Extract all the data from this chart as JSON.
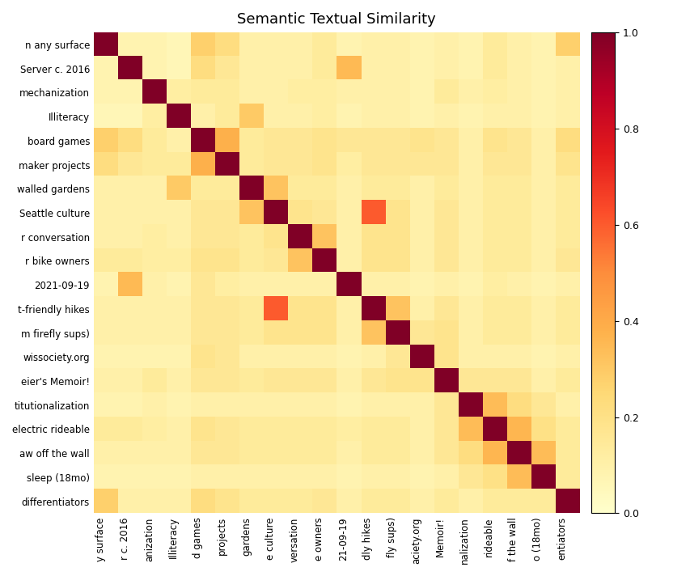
{
  "title": "Semantic Textual Similarity",
  "labels": [
    "n any surface",
    "Server c. 2016",
    "mechanization",
    "Illiteracy",
    "board games",
    "maker projects",
    "walled gardens",
    "Seattle culture",
    "r conversation",
    "r bike owners",
    "2021-09-19",
    "t-friendly hikes",
    "m firefly sups)",
    "wissociety.org",
    "eier's Memoir!",
    "titutionalization",
    "electric rideable",
    "aw off the wall",
    "sleep (18mo)",
    "differentiators"
  ],
  "x_labels": [
    "y surface",
    "r c. 2016",
    "anization",
    "Illiteracy",
    "d games",
    "projects",
    "gardens",
    "e culture",
    "versation",
    "e owners",
    "21-09-19",
    "dly hikes",
    "fly sups)",
    "aciety.org",
    "Memoir!",
    "nalization",
    "rideable",
    "f the wall",
    "o (18mo)",
    "entiators"
  ],
  "matrix": [
    [
      1.0,
      0.08,
      0.08,
      0.06,
      0.28,
      0.22,
      0.1,
      0.1,
      0.1,
      0.14,
      0.08,
      0.1,
      0.1,
      0.08,
      0.1,
      0.08,
      0.14,
      0.1,
      0.08,
      0.28
    ],
    [
      0.08,
      1.0,
      0.08,
      0.06,
      0.22,
      0.16,
      0.1,
      0.1,
      0.1,
      0.14,
      0.35,
      0.1,
      0.1,
      0.08,
      0.1,
      0.08,
      0.14,
      0.1,
      0.08,
      0.1
    ],
    [
      0.08,
      0.08,
      1.0,
      0.12,
      0.14,
      0.14,
      0.1,
      0.1,
      0.12,
      0.12,
      0.1,
      0.1,
      0.1,
      0.08,
      0.14,
      0.1,
      0.12,
      0.1,
      0.08,
      0.1
    ],
    [
      0.06,
      0.06,
      0.12,
      1.0,
      0.1,
      0.14,
      0.3,
      0.1,
      0.1,
      0.12,
      0.08,
      0.1,
      0.1,
      0.08,
      0.1,
      0.08,
      0.1,
      0.1,
      0.08,
      0.1
    ],
    [
      0.28,
      0.22,
      0.14,
      0.1,
      1.0,
      0.38,
      0.14,
      0.16,
      0.16,
      0.18,
      0.16,
      0.16,
      0.16,
      0.18,
      0.16,
      0.1,
      0.18,
      0.16,
      0.1,
      0.22
    ],
    [
      0.22,
      0.16,
      0.14,
      0.14,
      0.38,
      1.0,
      0.14,
      0.16,
      0.16,
      0.18,
      0.12,
      0.16,
      0.16,
      0.16,
      0.16,
      0.1,
      0.16,
      0.16,
      0.1,
      0.18
    ],
    [
      0.1,
      0.1,
      0.1,
      0.3,
      0.14,
      0.14,
      1.0,
      0.32,
      0.14,
      0.14,
      0.1,
      0.14,
      0.14,
      0.1,
      0.14,
      0.1,
      0.14,
      0.14,
      0.1,
      0.14
    ],
    [
      0.1,
      0.1,
      0.1,
      0.1,
      0.16,
      0.16,
      0.32,
      1.0,
      0.18,
      0.16,
      0.1,
      0.6,
      0.18,
      0.1,
      0.16,
      0.1,
      0.14,
      0.14,
      0.1,
      0.14
    ],
    [
      0.1,
      0.1,
      0.12,
      0.1,
      0.16,
      0.16,
      0.14,
      0.18,
      1.0,
      0.32,
      0.1,
      0.18,
      0.18,
      0.1,
      0.16,
      0.1,
      0.14,
      0.14,
      0.1,
      0.14
    ],
    [
      0.14,
      0.14,
      0.12,
      0.12,
      0.18,
      0.18,
      0.14,
      0.16,
      0.32,
      1.0,
      0.1,
      0.18,
      0.18,
      0.1,
      0.16,
      0.1,
      0.14,
      0.14,
      0.1,
      0.16
    ],
    [
      0.08,
      0.35,
      0.1,
      0.08,
      0.16,
      0.12,
      0.1,
      0.1,
      0.1,
      0.1,
      1.0,
      0.1,
      0.1,
      0.08,
      0.1,
      0.08,
      0.12,
      0.1,
      0.08,
      0.1
    ],
    [
      0.1,
      0.1,
      0.1,
      0.1,
      0.16,
      0.16,
      0.14,
      0.6,
      0.18,
      0.18,
      0.1,
      1.0,
      0.32,
      0.1,
      0.16,
      0.1,
      0.14,
      0.14,
      0.1,
      0.14
    ],
    [
      0.1,
      0.1,
      0.1,
      0.1,
      0.16,
      0.16,
      0.14,
      0.18,
      0.18,
      0.18,
      0.1,
      0.32,
      1.0,
      0.16,
      0.18,
      0.1,
      0.14,
      0.14,
      0.1,
      0.14
    ],
    [
      0.08,
      0.08,
      0.08,
      0.08,
      0.18,
      0.16,
      0.1,
      0.1,
      0.1,
      0.1,
      0.08,
      0.1,
      0.16,
      1.0,
      0.18,
      0.1,
      0.1,
      0.1,
      0.08,
      0.1
    ],
    [
      0.1,
      0.1,
      0.14,
      0.1,
      0.16,
      0.16,
      0.14,
      0.16,
      0.16,
      0.16,
      0.1,
      0.16,
      0.18,
      0.18,
      1.0,
      0.16,
      0.16,
      0.16,
      0.1,
      0.14
    ],
    [
      0.08,
      0.08,
      0.1,
      0.08,
      0.1,
      0.1,
      0.1,
      0.1,
      0.1,
      0.1,
      0.08,
      0.1,
      0.1,
      0.1,
      0.16,
      1.0,
      0.34,
      0.22,
      0.16,
      0.1
    ],
    [
      0.14,
      0.14,
      0.12,
      0.1,
      0.18,
      0.16,
      0.14,
      0.14,
      0.14,
      0.14,
      0.12,
      0.14,
      0.14,
      0.1,
      0.16,
      0.34,
      1.0,
      0.36,
      0.2,
      0.14
    ],
    [
      0.1,
      0.1,
      0.1,
      0.1,
      0.16,
      0.16,
      0.14,
      0.14,
      0.14,
      0.14,
      0.1,
      0.14,
      0.14,
      0.1,
      0.16,
      0.22,
      0.36,
      1.0,
      0.34,
      0.14
    ],
    [
      0.08,
      0.08,
      0.08,
      0.08,
      0.1,
      0.1,
      0.1,
      0.1,
      0.1,
      0.1,
      0.08,
      0.1,
      0.1,
      0.08,
      0.1,
      0.16,
      0.2,
      0.34,
      1.0,
      0.14
    ],
    [
      0.28,
      0.1,
      0.1,
      0.1,
      0.22,
      0.18,
      0.14,
      0.14,
      0.14,
      0.16,
      0.1,
      0.14,
      0.14,
      0.1,
      0.14,
      0.1,
      0.14,
      0.14,
      0.14,
      1.0
    ]
  ],
  "vmin": 0.0,
  "vmax": 1.0,
  "figsize": [
    8.54,
    7.12
  ],
  "dpi": 100,
  "title_fontsize": 13,
  "tick_fontsize": 8.5,
  "colorbar_tick_fontsize": 9,
  "background_color": "#ffffff"
}
